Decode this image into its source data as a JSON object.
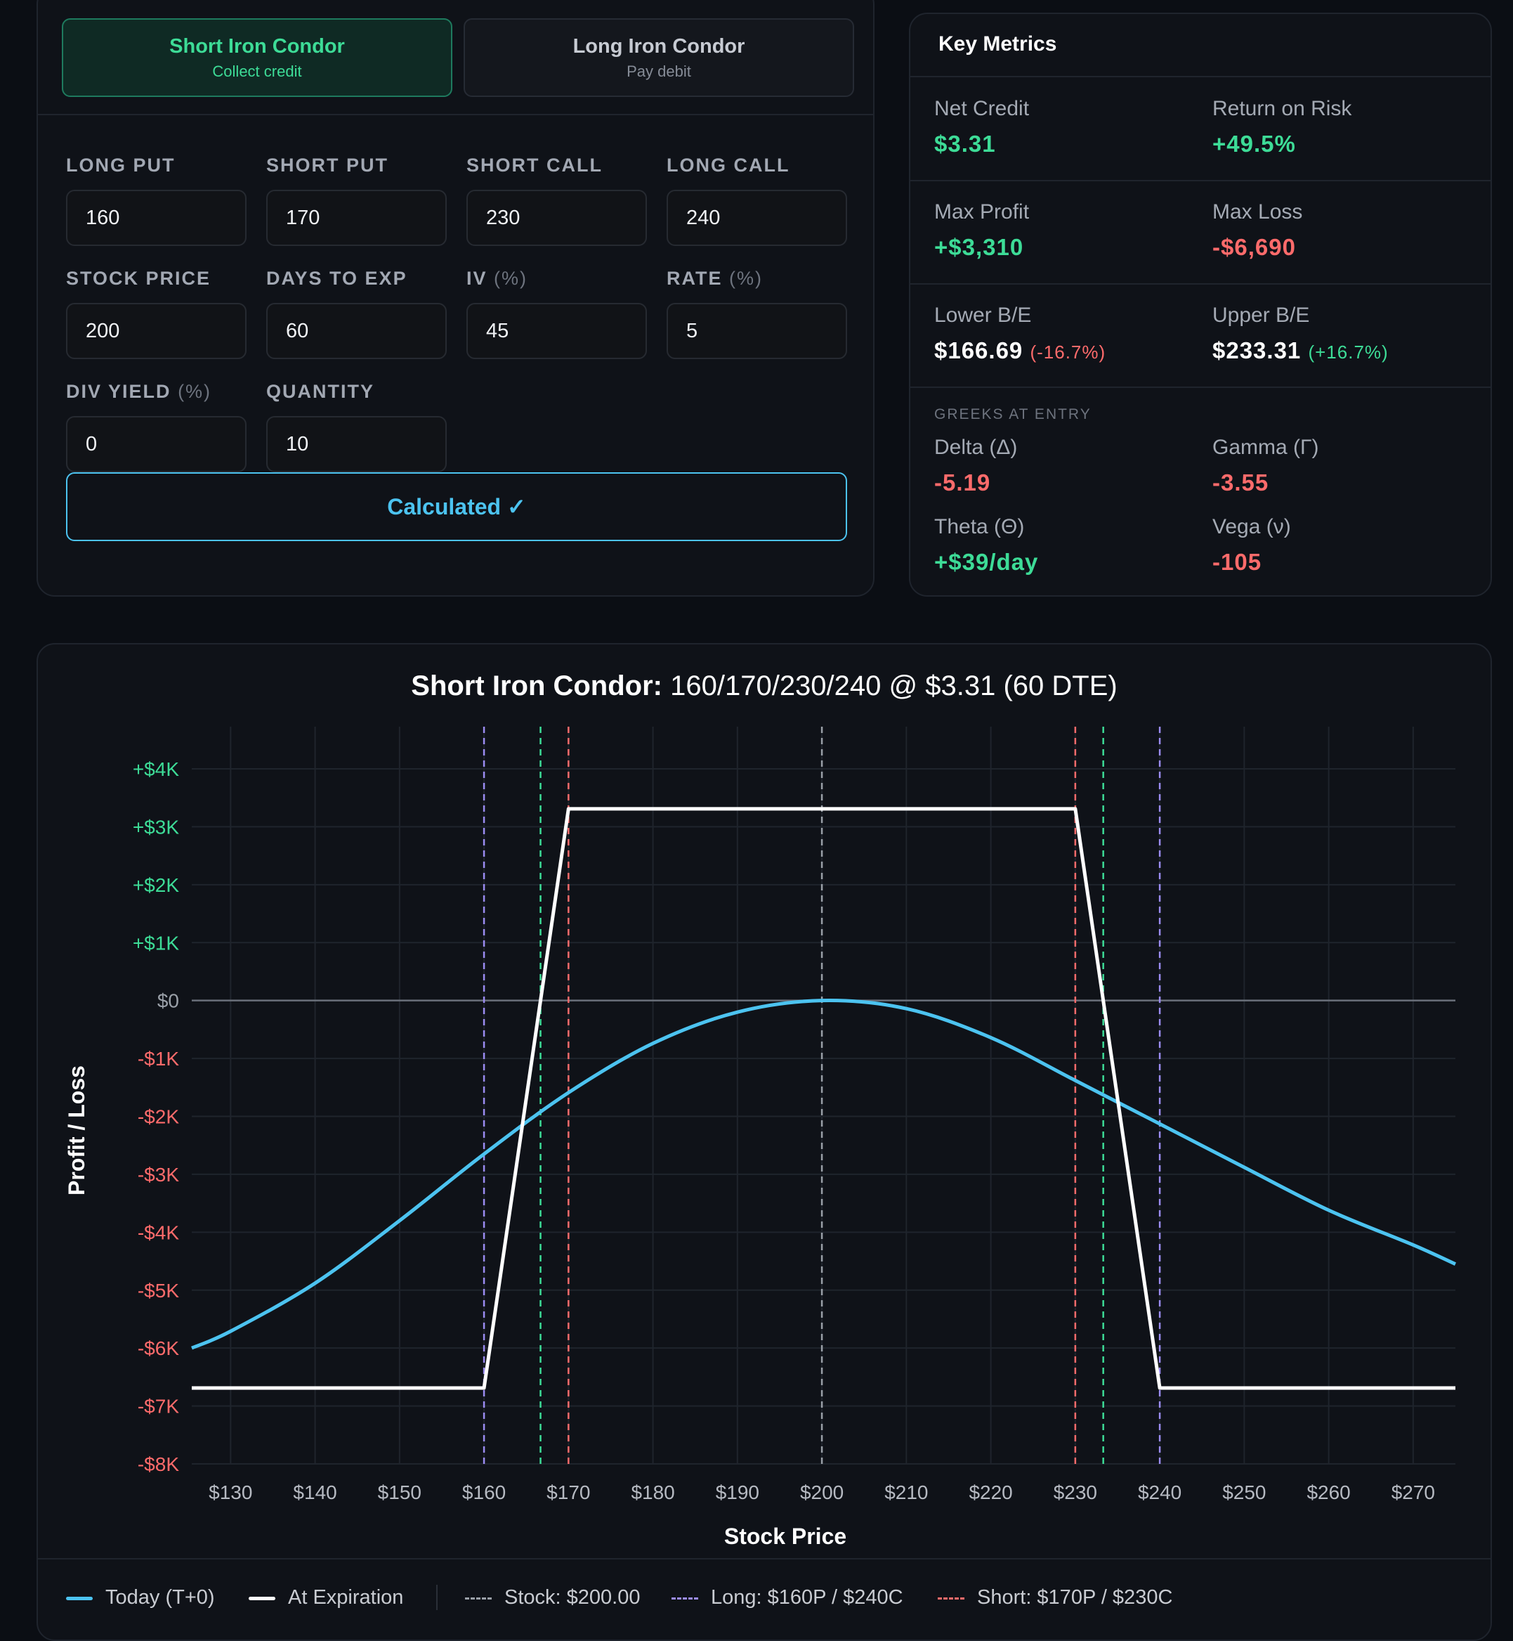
{
  "strategy_tabs": {
    "short": {
      "title": "Short Iron Condor",
      "subtitle": "Collect credit"
    },
    "long": {
      "title": "Long Iron Condor",
      "subtitle": "Pay debit"
    }
  },
  "inputs": {
    "long_put": {
      "label": "LONG PUT",
      "value": "160"
    },
    "short_put": {
      "label": "SHORT PUT",
      "value": "170"
    },
    "short_call": {
      "label": "SHORT CALL",
      "value": "230"
    },
    "long_call": {
      "label": "LONG CALL",
      "value": "240"
    },
    "stock_price": {
      "label": "STOCK PRICE",
      "value": "200"
    },
    "days_to_exp": {
      "label": "DAYS TO EXP",
      "value": "60"
    },
    "iv": {
      "label": "IV",
      "unit": "(%)",
      "value": "45"
    },
    "rate": {
      "label": "RATE",
      "unit": "(%)",
      "value": "5"
    },
    "div_yield": {
      "label": "DIV YIELD",
      "unit": "(%)",
      "value": "0"
    },
    "quantity": {
      "label": "QUANTITY",
      "value": "10"
    }
  },
  "calculate_button": "Calculated ✓",
  "metrics": {
    "title": "Key Metrics",
    "net_credit": {
      "label": "Net Credit",
      "value": "$3.31"
    },
    "return_on_risk": {
      "label": "Return on Risk",
      "value": "+49.5%"
    },
    "max_profit": {
      "label": "Max Profit",
      "value": "+$3,310"
    },
    "max_loss": {
      "label": "Max Loss",
      "value": "-$6,690"
    },
    "lower_be": {
      "label": "Lower B/E",
      "value": "$166.69",
      "pct": "(-16.7%)"
    },
    "upper_be": {
      "label": "Upper B/E",
      "value": "$233.31",
      "pct": "(+16.7%)"
    },
    "greeks_caption": "GREEKS AT ENTRY",
    "delta": {
      "label": "Delta (Δ)",
      "value": "-5.19"
    },
    "gamma": {
      "label": "Gamma (Γ)",
      "value": "-3.55"
    },
    "theta": {
      "label": "Theta (Θ)",
      "value": "+$39/day"
    },
    "vega": {
      "label": "Vega (ν)",
      "value": "-105"
    }
  },
  "chart_data": {
    "type": "line",
    "title": "Short Iron Condor:",
    "subtitle": "160/170/230/240 @ $3.31 (60 DTE)",
    "xlabel": "Stock Price",
    "ylabel": "Profit / Loss",
    "xlim": [
      125.4,
      275
    ],
    "ylim": [
      -8000,
      4000
    ],
    "x_ticks": [
      130,
      140,
      150,
      160,
      170,
      180,
      190,
      200,
      210,
      220,
      230,
      240,
      250,
      260,
      270
    ],
    "x_tick_labels": [
      "$130",
      "$140",
      "$150",
      "$160",
      "$170",
      "$180",
      "$190",
      "$200",
      "$210",
      "$220",
      "$230",
      "$240",
      "$250",
      "$260",
      "$270"
    ],
    "y_ticks": [
      4000,
      3000,
      2000,
      1000,
      0,
      -1000,
      -2000,
      -3000,
      -4000,
      -5000,
      -6000,
      -7000,
      -8000
    ],
    "y_tick_labels": [
      "+$4K",
      "+$3K",
      "+$2K",
      "+$1K",
      "$0",
      "-$1K",
      "-$2K",
      "-$3K",
      "-$4K",
      "-$5K",
      "-$6K",
      "-$7K",
      "-$8K"
    ],
    "grid": true,
    "series": [
      {
        "name": "Today (T+0)",
        "color": "#4cc3f0",
        "x": [
          125.4,
          130,
          140,
          150,
          160,
          170,
          180,
          190,
          200,
          210,
          220,
          230,
          240,
          250,
          260,
          270,
          275
        ],
        "y": [
          -6000,
          -5710,
          -4880,
          -3800,
          -2650,
          -1590,
          -740,
          -200,
          0,
          -140,
          -640,
          -1380,
          -2130,
          -2880,
          -3620,
          -4220,
          -4550
        ]
      },
      {
        "name": "At Expiration",
        "color": "#ffffff",
        "x": [
          125.4,
          160,
          170,
          230,
          240,
          275
        ],
        "y": [
          -6690,
          -6690,
          3310,
          3310,
          -6690,
          -6690
        ]
      }
    ],
    "reference_lines": [
      {
        "x": 200,
        "color": "#9aa0a8",
        "kind": "stock"
      },
      {
        "x": 160,
        "color": "#9b8cf2",
        "kind": "long"
      },
      {
        "x": 240,
        "color": "#9b8cf2",
        "kind": "long"
      },
      {
        "x": 170,
        "color": "#ff6b6b",
        "kind": "short"
      },
      {
        "x": 230,
        "color": "#ff6b6b",
        "kind": "short"
      },
      {
        "x": 166.69,
        "color": "#3ddc97",
        "kind": "breakeven"
      },
      {
        "x": 233.31,
        "color": "#3ddc97",
        "kind": "breakeven"
      }
    ],
    "legend_position": "bottom",
    "legend": [
      "Today (T+0)",
      "At Expiration",
      "Stock: $200.00",
      "Long: $160P / $240C",
      "Short: $170P / $230C"
    ]
  }
}
